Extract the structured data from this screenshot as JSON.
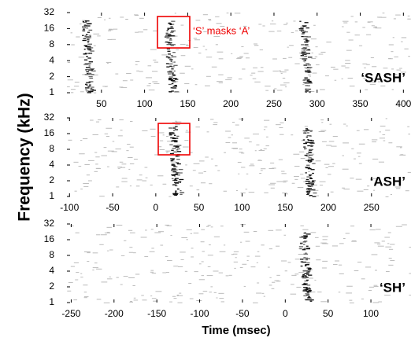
{
  "chart_data": [
    {
      "type": "spectrogram",
      "label": "‘SASH’",
      "annotation": "‘S’ masks ‘A’",
      "xlim": [
        10,
        407
      ],
      "xticks": [
        50,
        100,
        150,
        200,
        250,
        300,
        350,
        400
      ],
      "ylim": [
        1,
        32
      ],
      "yticks": [
        1,
        2,
        4,
        8,
        16,
        32
      ],
      "log_y": true
    },
    {
      "type": "spectrogram",
      "label": "‘ASH’",
      "ylabel": "Frequency (kHz)",
      "xlim": [
        -103,
        294
      ],
      "xticks": [
        -100,
        -50,
        0,
        50,
        100,
        150,
        200,
        250
      ],
      "ylim": [
        1,
        32
      ],
      "yticks": [
        1,
        2,
        4,
        8,
        16,
        32
      ],
      "log_y": true
    },
    {
      "type": "spectrogram",
      "label": "‘SH’",
      "xlabel": "Time (msec)",
      "xlim": [
        -255,
        145
      ],
      "xticks": [
        -250,
        -200,
        -150,
        -100,
        -50,
        0,
        50,
        100
      ],
      "ylim": [
        1,
        32
      ],
      "yticks": [
        1,
        2,
        4,
        8,
        16,
        32
      ],
      "log_y": true
    }
  ]
}
